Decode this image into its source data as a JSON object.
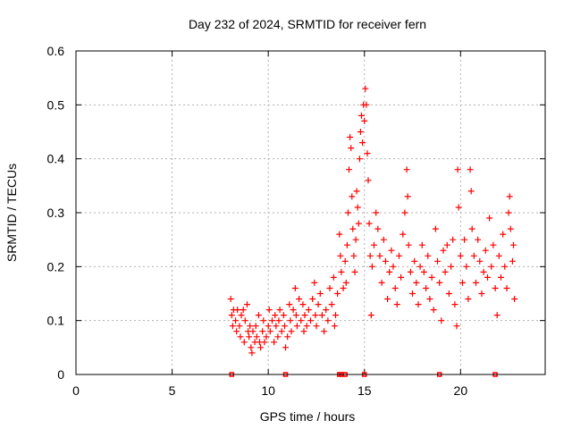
{
  "chart_data": {
    "type": "scatter",
    "title": "Day 232 of 2024, SRMTID for receiver fern",
    "xlabel": "GPS time / hours",
    "ylabel": "SRMTID / TECUs",
    "xlim": [
      0,
      24.4
    ],
    "ylim": [
      0,
      0.6
    ],
    "xticks": [
      0,
      5,
      10,
      15,
      20
    ],
    "xtick_labels": [
      "0",
      "5",
      "10",
      "15",
      "20"
    ],
    "yticks": [
      0,
      0.1,
      0.2,
      0.3,
      0.4,
      0.5,
      0.6
    ],
    "ytick_labels": [
      "0",
      "0.1",
      "0.2",
      "0.3",
      "0.4",
      "0.5",
      "0.6"
    ],
    "grid": true,
    "marker": "plus",
    "color": "#ff0000",
    "series": [
      {
        "name": "SRMTID",
        "points": [
          [
            8.05,
            0.14
          ],
          [
            8.1,
            0.11
          ],
          [
            8.15,
            0.09
          ],
          [
            8.2,
            0.12
          ],
          [
            8.3,
            0.1
          ],
          [
            8.35,
            0.08
          ],
          [
            8.4,
            0.12
          ],
          [
            8.5,
            0.09
          ],
          [
            8.55,
            0.07
          ],
          [
            8.6,
            0.11
          ],
          [
            8.7,
            0.12
          ],
          [
            8.75,
            0.06
          ],
          [
            8.8,
            0.1
          ],
          [
            8.9,
            0.13
          ],
          [
            8.95,
            0.08
          ],
          [
            9.0,
            0.07
          ],
          [
            9.05,
            0.09
          ],
          [
            9.1,
            0.05
          ],
          [
            9.15,
            0.04
          ],
          [
            9.2,
            0.08
          ],
          [
            9.3,
            0.06
          ],
          [
            9.35,
            0.09
          ],
          [
            9.4,
            0.07
          ],
          [
            9.5,
            0.11
          ],
          [
            9.55,
            0.06
          ],
          [
            9.6,
            0.05
          ],
          [
            9.7,
            0.08
          ],
          [
            9.75,
            0.1
          ],
          [
            9.8,
            0.06
          ],
          [
            9.9,
            0.07
          ],
          [
            10.0,
            0.09
          ],
          [
            10.05,
            0.12
          ],
          [
            10.1,
            0.08
          ],
          [
            10.2,
            0.1
          ],
          [
            10.3,
            0.06
          ],
          [
            10.35,
            0.11
          ],
          [
            10.4,
            0.09
          ],
          [
            10.5,
            0.07
          ],
          [
            10.55,
            0.1
          ],
          [
            10.6,
            0.12
          ],
          [
            10.7,
            0.08
          ],
          [
            10.8,
            0.11
          ],
          [
            10.85,
            0.09
          ],
          [
            10.9,
            0.05
          ],
          [
            11.0,
            0.07
          ],
          [
            11.1,
            0.13
          ],
          [
            11.15,
            0.1
          ],
          [
            11.2,
            0.08
          ],
          [
            11.3,
            0.12
          ],
          [
            11.4,
            0.16
          ],
          [
            11.45,
            0.11
          ],
          [
            11.5,
            0.09
          ],
          [
            11.6,
            0.14
          ],
          [
            11.7,
            0.1
          ],
          [
            11.8,
            0.13
          ],
          [
            11.85,
            0.08
          ],
          [
            11.9,
            0.11
          ],
          [
            12.0,
            0.09
          ],
          [
            12.1,
            0.12
          ],
          [
            12.2,
            0.1
          ],
          [
            12.3,
            0.14
          ],
          [
            12.4,
            0.17
          ],
          [
            12.45,
            0.11
          ],
          [
            12.5,
            0.09
          ],
          [
            12.6,
            0.13
          ],
          [
            12.7,
            0.15
          ],
          [
            12.8,
            0.11
          ],
          [
            12.9,
            0.08
          ],
          [
            13.0,
            0.12
          ],
          [
            13.1,
            0.1
          ],
          [
            13.2,
            0.16
          ],
          [
            13.3,
            0.13
          ],
          [
            13.4,
            0.18
          ],
          [
            13.45,
            0.09
          ],
          [
            13.5,
            0.11
          ],
          [
            13.6,
            0.15
          ],
          [
            13.7,
            0.26
          ],
          [
            13.75,
            0.22
          ],
          [
            13.8,
            0.19
          ],
          [
            13.9,
            0.16
          ],
          [
            14.0,
            0.21
          ],
          [
            14.05,
            0.17
          ],
          [
            14.1,
            0.24
          ],
          [
            14.15,
            0.3
          ],
          [
            14.2,
            0.38
          ],
          [
            14.25,
            0.44
          ],
          [
            14.3,
            0.42
          ],
          [
            14.35,
            0.33
          ],
          [
            14.4,
            0.27
          ],
          [
            14.45,
            0.22
          ],
          [
            14.5,
            0.19
          ],
          [
            14.55,
            0.25
          ],
          [
            14.6,
            0.34
          ],
          [
            14.65,
            0.31
          ],
          [
            14.7,
            0.28
          ],
          [
            14.75,
            0.4
          ],
          [
            14.8,
            0.45
          ],
          [
            14.85,
            0.48
          ],
          [
            14.9,
            0.43
          ],
          [
            14.95,
            0.5
          ],
          [
            15.0,
            0.47
          ],
          [
            15.05,
            0.53
          ],
          [
            15.1,
            0.5
          ],
          [
            15.15,
            0.41
          ],
          [
            15.2,
            0.36
          ],
          [
            15.25,
            0.28
          ],
          [
            15.3,
            0.22
          ],
          [
            15.35,
            0.11
          ],
          [
            15.4,
            0.2
          ],
          [
            15.5,
            0.24
          ],
          [
            15.6,
            0.3
          ],
          [
            15.7,
            0.27
          ],
          [
            15.8,
            0.22
          ],
          [
            15.9,
            0.17
          ],
          [
            16.0,
            0.25
          ],
          [
            16.1,
            0.21
          ],
          [
            16.2,
            0.14
          ],
          [
            16.3,
            0.19
          ],
          [
            16.4,
            0.23
          ],
          [
            16.5,
            0.2
          ],
          [
            16.6,
            0.16
          ],
          [
            16.7,
            0.13
          ],
          [
            16.8,
            0.22
          ],
          [
            16.9,
            0.18
          ],
          [
            17.0,
            0.26
          ],
          [
            17.1,
            0.3
          ],
          [
            17.2,
            0.38
          ],
          [
            17.25,
            0.33
          ],
          [
            17.3,
            0.24
          ],
          [
            17.4,
            0.19
          ],
          [
            17.5,
            0.15
          ],
          [
            17.6,
            0.21
          ],
          [
            17.7,
            0.17
          ],
          [
            17.8,
            0.13
          ],
          [
            17.9,
            0.2
          ],
          [
            18.0,
            0.24
          ],
          [
            18.1,
            0.19
          ],
          [
            18.2,
            0.16
          ],
          [
            18.3,
            0.22
          ],
          [
            18.4,
            0.14
          ],
          [
            18.5,
            0.18
          ],
          [
            18.6,
            0.12
          ],
          [
            18.7,
            0.27
          ],
          [
            18.8,
            0.21
          ],
          [
            18.9,
            0.17
          ],
          [
            19.0,
            0.1
          ],
          [
            19.1,
            0.23
          ],
          [
            19.2,
            0.19
          ],
          [
            19.3,
            0.24
          ],
          [
            19.4,
            0.15
          ],
          [
            19.5,
            0.2
          ],
          [
            19.6,
            0.25
          ],
          [
            19.7,
            0.13
          ],
          [
            19.8,
            0.09
          ],
          [
            19.85,
            0.38
          ],
          [
            19.9,
            0.31
          ],
          [
            20.0,
            0.22
          ],
          [
            20.1,
            0.17
          ],
          [
            20.2,
            0.25
          ],
          [
            20.3,
            0.2
          ],
          [
            20.4,
            0.14
          ],
          [
            20.5,
            0.38
          ],
          [
            20.55,
            0.34
          ],
          [
            20.6,
            0.27
          ],
          [
            20.7,
            0.22
          ],
          [
            20.8,
            0.17
          ],
          [
            20.9,
            0.25
          ],
          [
            21.0,
            0.21
          ],
          [
            21.1,
            0.15
          ],
          [
            21.2,
            0.19
          ],
          [
            21.3,
            0.23
          ],
          [
            21.4,
            0.18
          ],
          [
            21.5,
            0.29
          ],
          [
            21.6,
            0.2
          ],
          [
            21.7,
            0.24
          ],
          [
            21.8,
            0.16
          ],
          [
            21.9,
            0.11
          ],
          [
            22.0,
            0.22
          ],
          [
            22.1,
            0.18
          ],
          [
            22.2,
            0.26
          ],
          [
            22.3,
            0.2
          ],
          [
            22.4,
            0.16
          ],
          [
            22.5,
            0.3
          ],
          [
            22.55,
            0.33
          ],
          [
            22.6,
            0.27
          ],
          [
            22.7,
            0.21
          ],
          [
            22.75,
            0.24
          ],
          [
            22.8,
            0.14
          ]
        ]
      }
    ],
    "x_axis_markers": [
      8.1,
      10.9,
      13.7,
      13.8,
      14.0,
      15.0,
      18.9,
      21.8
    ]
  }
}
